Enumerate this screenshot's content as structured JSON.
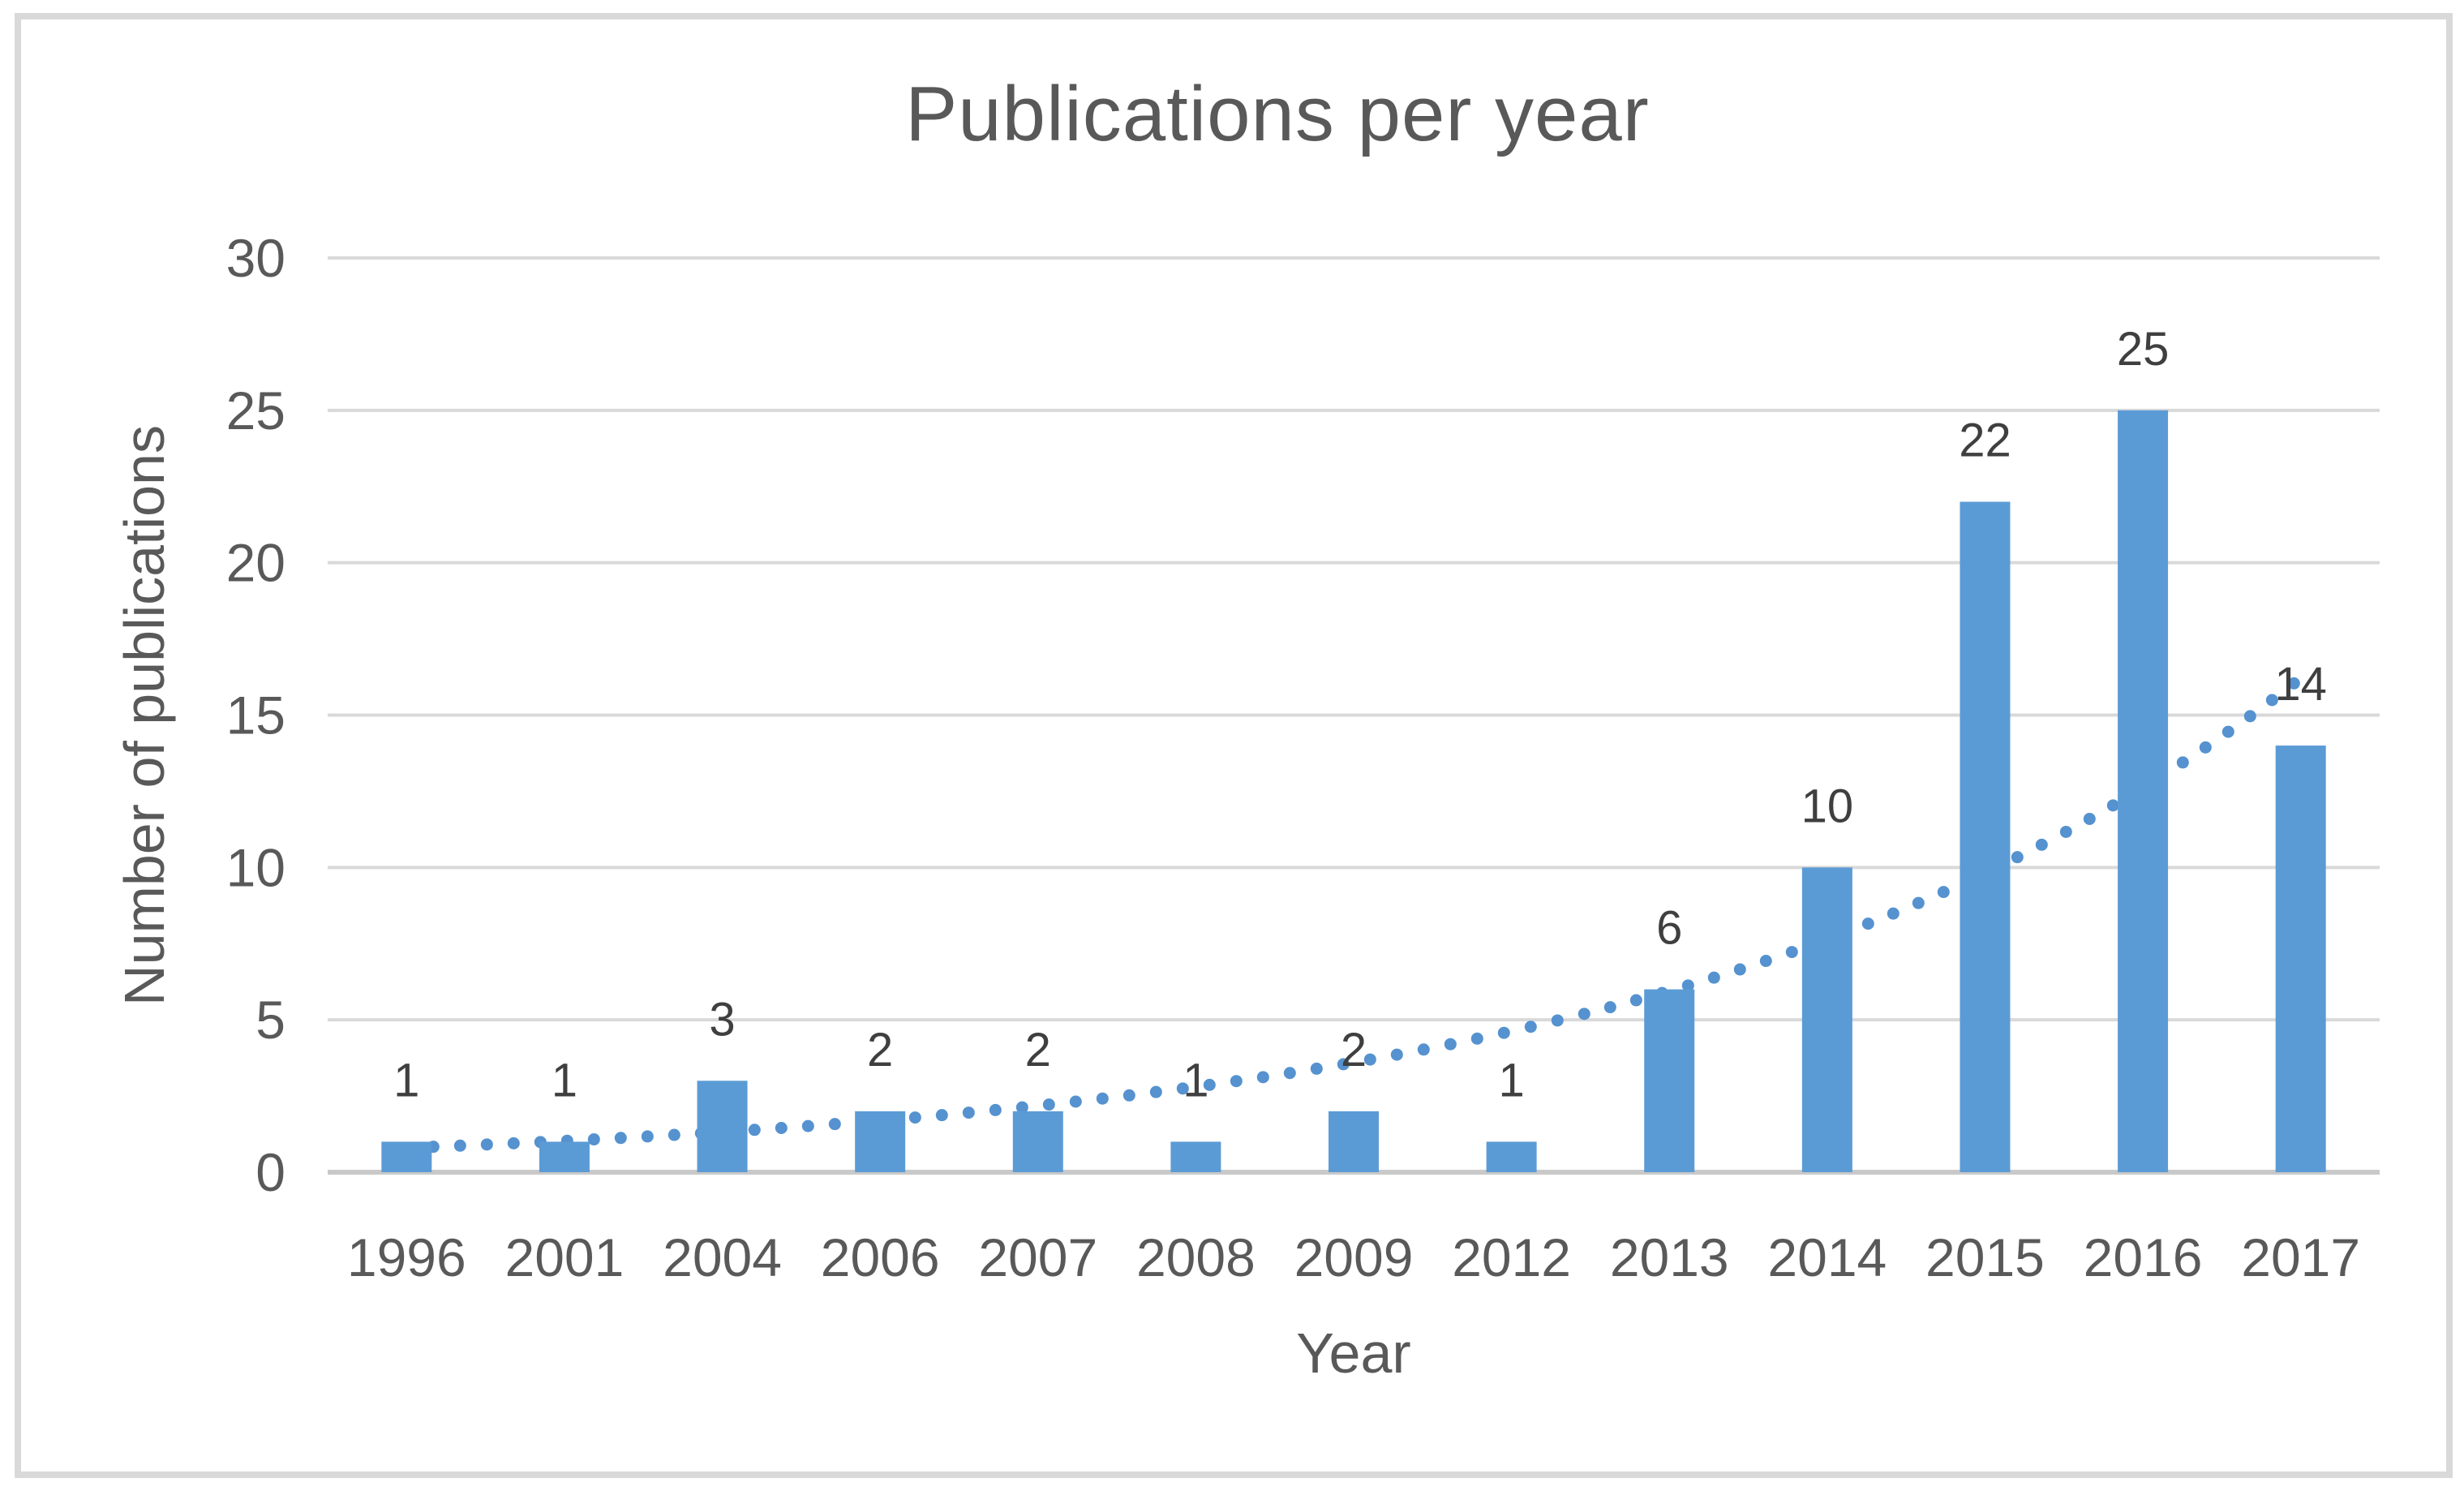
{
  "chart_data": {
    "type": "bar",
    "title": "Publications per year",
    "xlabel": "Year",
    "ylabel": "Number of publications",
    "categories": [
      "1996",
      "2001",
      "2004",
      "2006",
      "2007",
      "2008",
      "2009",
      "2012",
      "2013",
      "2014",
      "2015",
      "2016",
      "2017"
    ],
    "values": [
      1,
      1,
      3,
      2,
      2,
      1,
      2,
      1,
      6,
      10,
      22,
      25,
      14
    ],
    "data_labels": [
      "1",
      "1",
      "3",
      "2",
      "2",
      "1",
      "2",
      "1",
      "6",
      "10",
      "22",
      "25",
      "14"
    ],
    "y_ticks": [
      0,
      5,
      10,
      15,
      20,
      25,
      30
    ],
    "ylim": [
      0,
      30
    ],
    "grid": true,
    "legend": "none",
    "trendline": {
      "type": "exponential",
      "style": "dotted",
      "start_value": 0.8,
      "growth_per_category": 1.285,
      "end_value_approx": 16.2
    },
    "colors": {
      "bar": "#5b9bd5",
      "trendline": "#5592cf",
      "gridline": "#d9d9d9",
      "axis_line": "#c9c9c9",
      "axis_text": "#595959",
      "data_label_text": "#3f3f3f",
      "title_text": "#595959",
      "frame_border": "#d9d9d9"
    }
  }
}
